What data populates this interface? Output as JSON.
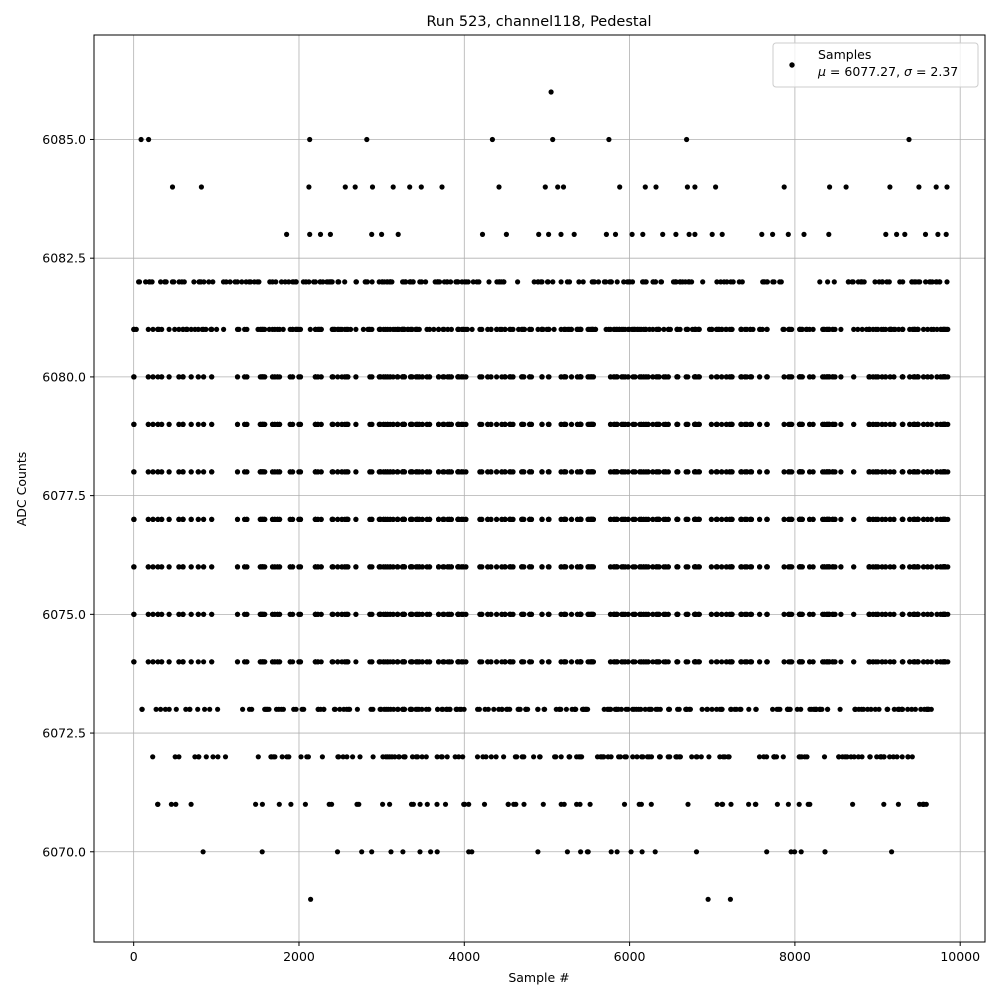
{
  "chart_data": {
    "type": "scatter",
    "title": "Run 523, channel118, Pedestal",
    "xlabel": "Sample #",
    "ylabel": "ADC Counts",
    "xlim": [
      -480,
      10300
    ],
    "ylim": [
      6068.1,
      6087.2
    ],
    "x_ticks": [
      0,
      2000,
      4000,
      6000,
      8000,
      10000
    ],
    "y_ticks": [
      6070.0,
      6072.5,
      6075.0,
      6077.5,
      6080.0,
      6082.5,
      6085.0
    ],
    "x_tick_labels": [
      "0",
      "2000",
      "4000",
      "6000",
      "8000",
      "10000"
    ],
    "y_tick_labels": [
      "6070.0",
      "6072.5",
      "6075.0",
      "6077.5",
      "6080.0",
      "6082.5",
      "6085.0"
    ],
    "grid": true,
    "legend_position": "top-right",
    "legend": {
      "series_name": "Samples",
      "stats_mu": "6077.27",
      "stats_sigma": "2.37"
    },
    "series": [
      {
        "name": "Samples",
        "color": "#000000",
        "x": [
          5050,
          90,
          180,
          2130,
          2820,
          4340,
          5070,
          5750,
          6690,
          9380,
          470,
          820,
          2120,
          2560,
          2680,
          2890,
          3140,
          3340,
          3480,
          3730,
          4420,
          4980,
          5130,
          5200,
          5880,
          6190,
          6320,
          6700,
          6790,
          7040,
          7870,
          8420,
          8620,
          9150,
          9500,
          9710,
          9840,
          1850,
          2130,
          2260,
          2380,
          2880,
          3000,
          3200,
          4220,
          4510,
          4900,
          5020,
          5170,
          5330,
          5720,
          5830,
          6030,
          6160,
          6400,
          6560,
          6720,
          6790,
          7000,
          7120,
          7600,
          7730,
          7920,
          8110,
          8410,
          9100,
          9230,
          9330,
          9580,
          9730,
          9830
        ],
        "y": [
          6086,
          6085,
          6085,
          6085,
          6085,
          6085,
          6085,
          6085,
          6085,
          6085,
          6084,
          6084,
          6084,
          6084,
          6084,
          6084,
          6084,
          6084,
          6084,
          6084,
          6084,
          6084,
          6084,
          6084,
          6084,
          6084,
          6084,
          6084,
          6084,
          6084,
          6084,
          6084,
          6084,
          6084,
          6084,
          6084,
          6084,
          6083,
          6083,
          6083,
          6083,
          6083,
          6083,
          6083,
          6083,
          6083,
          6083,
          6083,
          6083,
          6083,
          6083,
          6083,
          6083,
          6083,
          6083,
          6083,
          6083,
          6083,
          6083,
          6083,
          6083,
          6083,
          6083,
          6083,
          6083,
          6083,
          6083,
          6083,
          6083,
          6083,
          6083
        ]
      }
    ],
    "dense_band_levels": [
      6082,
      6081,
      6080,
      6079,
      6078,
      6077,
      6076,
      6075,
      6074,
      6073,
      6072,
      6071,
      6070
    ],
    "dense_band_samples": [
      {
        "level": 6082,
        "x_start": 60,
        "x_end": 9840,
        "count": 220
      },
      {
        "level": 6081,
        "x_start": 0,
        "x_end": 9850,
        "count": 330
      },
      {
        "level": 6080,
        "x_start": 0,
        "x_end": 9850,
        "count": 420
      },
      {
        "level": 6079,
        "x_start": 0,
        "x_end": 9850,
        "count": 410
      },
      {
        "level": 6078,
        "x_start": 0,
        "x_end": 9850,
        "count": 520
      },
      {
        "level": 6077,
        "x_start": 0,
        "x_end": 9850,
        "count": 520
      },
      {
        "level": 6076,
        "x_start": 0,
        "x_end": 9850,
        "count": 510
      },
      {
        "level": 6075,
        "x_start": 0,
        "x_end": 9850,
        "count": 470
      },
      {
        "level": 6074,
        "x_start": 0,
        "x_end": 9850,
        "count": 380
      },
      {
        "level": 6073,
        "x_start": 100,
        "x_end": 9650,
        "count": 230
      },
      {
        "level": 6072,
        "x_start": 230,
        "x_end": 9420,
        "count": 150
      },
      {
        "level": 6071,
        "x_start": 290,
        "x_end": 9590,
        "count": 60
      },
      {
        "level": 6070,
        "x_start": 840,
        "x_end": 9170,
        "count": 28
      }
    ],
    "sparse_points_6069": [
      2140,
      6950,
      7220
    ]
  }
}
